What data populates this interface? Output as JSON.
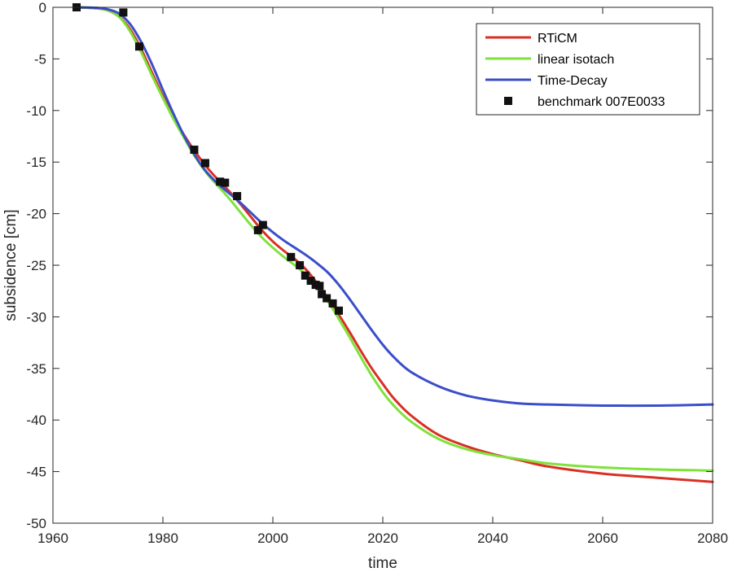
{
  "chart_data": {
    "type": "line",
    "xlabel": "time",
    "ylabel": "subsidence [cm]",
    "xlim": [
      1960,
      2080
    ],
    "ylim": [
      -50,
      0
    ],
    "xticks": [
      1960,
      1980,
      2000,
      2020,
      2040,
      2060,
      2080
    ],
    "yticks": [
      0,
      -5,
      -10,
      -15,
      -20,
      -25,
      -30,
      -35,
      -40,
      -45,
      -50
    ],
    "grid": false,
    "legend_position": "top-right",
    "series": [
      {
        "name": "RTiCM",
        "kind": "line",
        "color": "#d93025",
        "x": [
          1964.3,
          1968,
          1970,
          1972,
          1974,
          1976,
          1978,
          1980,
          1982,
          1984,
          1986,
          1988,
          1990,
          1992,
          1994,
          1996,
          1998,
          2000,
          2002,
          2004,
          2006,
          2008,
          2010,
          2012,
          2014,
          2016,
          2018,
          2020,
          2022,
          2025,
          2030,
          2035,
          2040,
          2045,
          2050,
          2060,
          2070,
          2080
        ],
        "y": [
          0,
          -0.1,
          -0.3,
          -0.9,
          -2.1,
          -4.0,
          -6.3,
          -8.6,
          -10.7,
          -12.5,
          -14.1,
          -15.5,
          -16.7,
          -17.8,
          -19.0,
          -20.3,
          -21.6,
          -22.7,
          -23.6,
          -24.4,
          -25.4,
          -26.7,
          -28.2,
          -29.8,
          -31.5,
          -33.3,
          -35.0,
          -36.5,
          -37.9,
          -39.5,
          -41.4,
          -42.5,
          -43.3,
          -43.9,
          -44.5,
          -45.2,
          -45.6,
          -46.0
        ]
      },
      {
        "name": "linear isotach",
        "kind": "line",
        "color": "#7fe23a",
        "x": [
          1964.3,
          1968,
          1970,
          1972,
          1974,
          1976,
          1978,
          1980,
          1982,
          1984,
          1986,
          1988,
          1990,
          1992,
          1994,
          1996,
          1998,
          2000,
          2002,
          2004,
          2006,
          2008,
          2010,
          2012,
          2014,
          2016,
          2018,
          2020,
          2022,
          2025,
          2030,
          2035,
          2040,
          2045,
          2050,
          2060,
          2070,
          2080
        ],
        "y": [
          0,
          -0.1,
          -0.3,
          -0.9,
          -2.3,
          -4.3,
          -6.6,
          -8.8,
          -10.9,
          -12.8,
          -14.6,
          -16.1,
          -17.3,
          -18.5,
          -19.8,
          -21.1,
          -22.3,
          -23.3,
          -24.2,
          -25.0,
          -25.9,
          -27.1,
          -28.5,
          -30.2,
          -32.0,
          -33.9,
          -35.7,
          -37.3,
          -38.6,
          -40.1,
          -41.8,
          -42.8,
          -43.4,
          -43.8,
          -44.2,
          -44.6,
          -44.8,
          -44.9
        ]
      },
      {
        "name": "Time-Decay",
        "kind": "line",
        "color": "#3a4ec9",
        "x": [
          1964.3,
          1968,
          1970,
          1972,
          1974,
          1976,
          1978,
          1980,
          1982,
          1984,
          1986,
          1988,
          1990,
          1992,
          1994,
          1996,
          1998,
          2000,
          2002,
          2004,
          2006,
          2008,
          2010,
          2012,
          2014,
          2016,
          2018,
          2020,
          2022,
          2025,
          2030,
          2035,
          2040,
          2045,
          2050,
          2060,
          2070,
          2080
        ],
        "y": [
          0,
          -0.05,
          -0.2,
          -0.6,
          -1.6,
          -3.3,
          -5.5,
          -8.0,
          -10.4,
          -12.6,
          -14.5,
          -16.0,
          -17.1,
          -18.0,
          -18.9,
          -19.9,
          -20.9,
          -21.8,
          -22.6,
          -23.3,
          -24.0,
          -24.8,
          -25.7,
          -26.9,
          -28.3,
          -29.8,
          -31.3,
          -32.7,
          -33.9,
          -35.3,
          -36.7,
          -37.6,
          -38.1,
          -38.4,
          -38.5,
          -38.6,
          -38.6,
          -38.5
        ]
      },
      {
        "name": "benchmark 007E0033",
        "kind": "markers",
        "color": "#111111",
        "x": [
          1964.3,
          1972.8,
          1975.7,
          1985.7,
          1987.7,
          1990.4,
          1991.3,
          1993.5,
          1997.3,
          1998.2,
          2003.3,
          2004.9,
          2005.9,
          2006.9,
          2007.8,
          2008.5,
          2008.9,
          2009.8,
          2010.9,
          2012
        ],
        "y": [
          0,
          -0.5,
          -3.8,
          -13.8,
          -15.1,
          -16.9,
          -17.0,
          -18.3,
          -21.6,
          -21.1,
          -24.2,
          -25.0,
          -26.0,
          -26.5,
          -26.9,
          -27.0,
          -27.8,
          -28.2,
          -28.7,
          -29.4
        ]
      }
    ]
  }
}
